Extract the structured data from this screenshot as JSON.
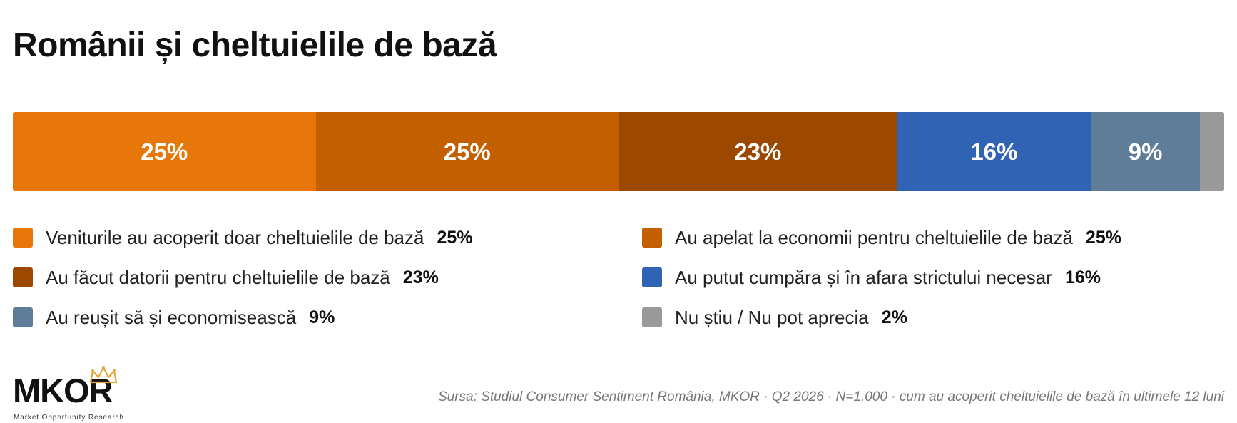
{
  "title": "Românii și cheltuielile de bază",
  "chart_data": {
    "type": "bar",
    "orientation": "horizontal-stacked-100",
    "title": "Românii și cheltuielile de bază",
    "series": [
      {
        "name": "Veniturile au acoperit doar cheltuielile de bază",
        "value": 25,
        "label": "25%",
        "color": "#E8770A"
      },
      {
        "name": "Au apelat la economii pentru cheltuielile de bază",
        "value": 25,
        "label": "25%",
        "color": "#C45F00"
      },
      {
        "name": "Au făcut datorii pentru cheltuielile de bază",
        "value": 23,
        "label": "23%",
        "color": "#9C4800"
      },
      {
        "name": "Au putut cumpăra și în afara strictului necesar",
        "value": 16,
        "label": "16%",
        "color": "#3163B5"
      },
      {
        "name": "Au reușit să și economisească",
        "value": 9,
        "label": "9%",
        "color": "#5F7C98"
      },
      {
        "name": "Nu știu / Nu pot aprecia",
        "value": 2,
        "label": "2%",
        "color": "#999999"
      }
    ],
    "legend_placement": "bottom",
    "legend_columns": 2,
    "grid": false
  },
  "logo": {
    "name": "MKOR",
    "tagline": "Market Opportunity Research",
    "accent_color": "#E0A83A"
  },
  "source": "Sursa: Studiul Consumer Sentiment România, MKOR · Q2 2026 · N=1.000 · cum au acoperit cheltuielile de bază în ultimele 12 luni"
}
